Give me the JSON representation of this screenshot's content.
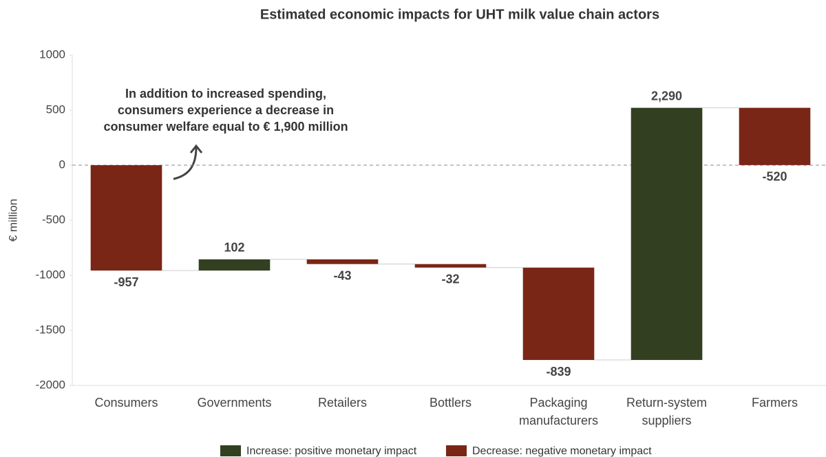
{
  "chart_data": {
    "type": "waterfall",
    "title": "Estimated economic impacts for UHT milk value chain actors",
    "y_label": "€ million",
    "categories": [
      "Consumers",
      "Governments",
      "Retailers",
      "Bottlers",
      "Packaging manufacturers",
      "Return-system suppliers",
      "Farmers"
    ],
    "values": [
      -957,
      102,
      -43,
      -32,
      -839,
      2290,
      -520
    ],
    "value_labels": [
      "-957",
      "102",
      "-43",
      "-32",
      "-839",
      "2,290",
      "-520"
    ],
    "ylim": [
      -2000,
      1000
    ],
    "yticks": [
      -2000,
      -1500,
      -1000,
      -500,
      0,
      500,
      1000
    ],
    "legend": [
      {
        "name": "Increase: positive monetary impact",
        "color": "#333f21"
      },
      {
        "name": "Decrease: negative monetary impact",
        "color": "#7a2616"
      }
    ],
    "annotation": [
      "In addition to increased spending,",
      "consumers experience a decrease in",
      "consumer welfare equal to € 1,900 million"
    ]
  }
}
